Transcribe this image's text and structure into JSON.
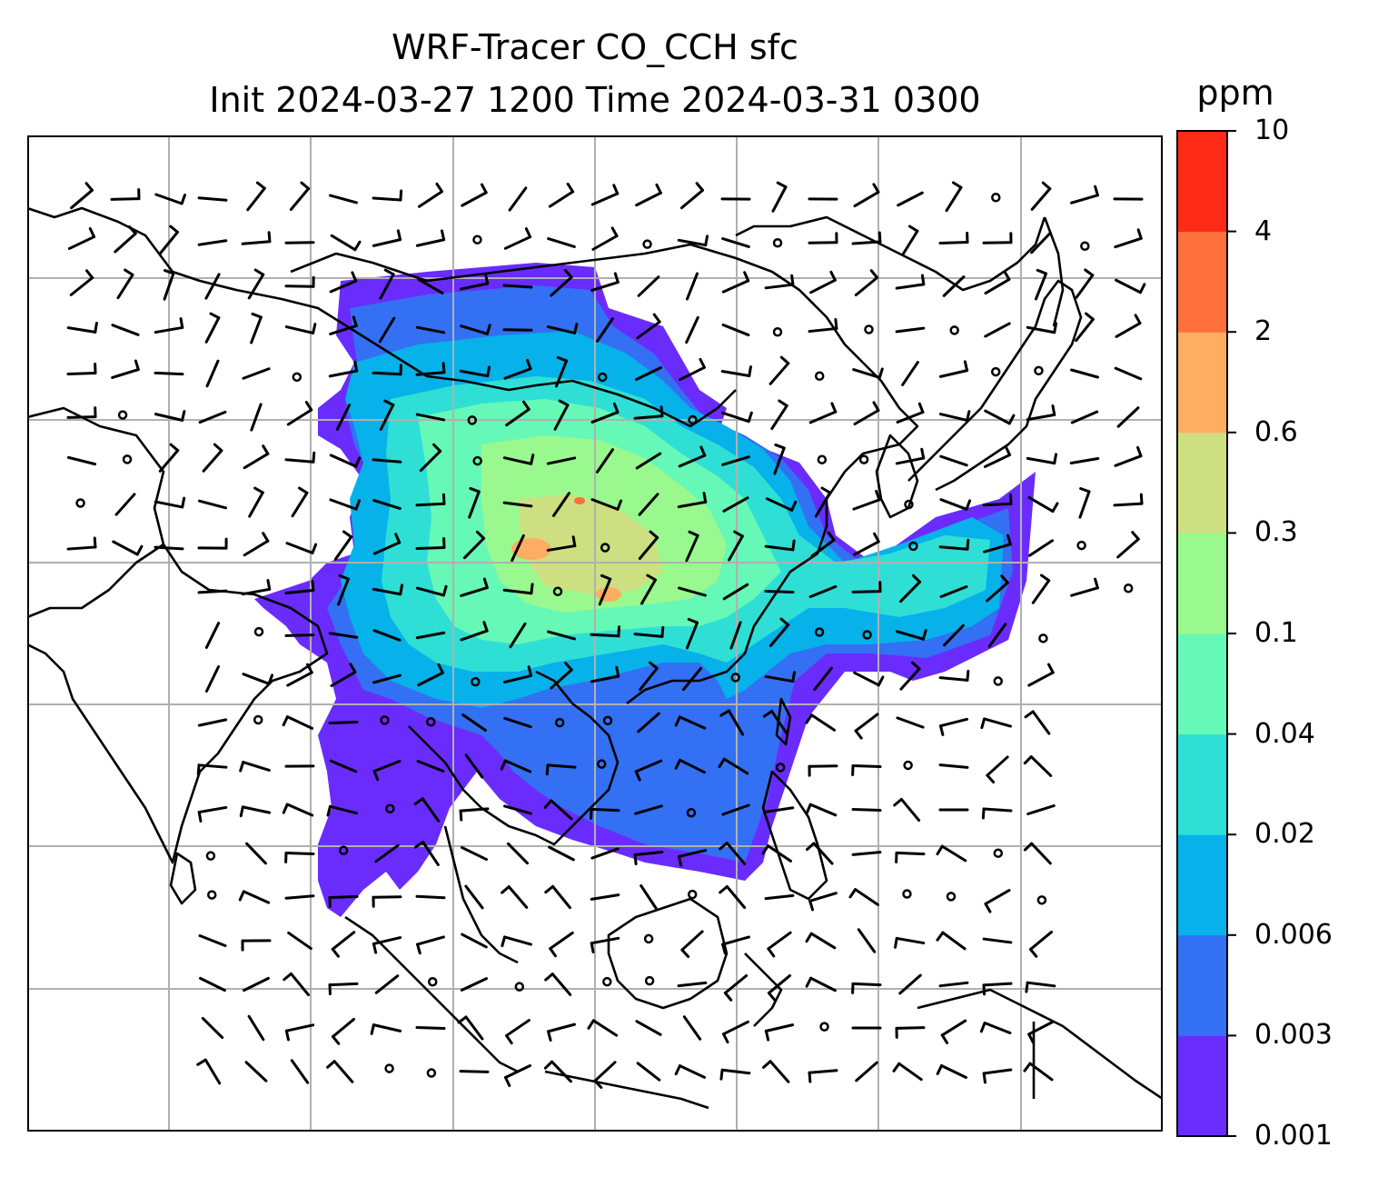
{
  "title": {
    "line1": "WRF-Tracer CO_CCH sfc",
    "line2": "Init 2024-03-27 1200 Time 2024-03-31 0300"
  },
  "colorbar": {
    "unit": "ppm",
    "levels": [
      "0.001",
      "0.003",
      "0.006",
      "0.02",
      "0.04",
      "0.1",
      "0.3",
      "0.6",
      "2",
      "4",
      "10"
    ],
    "colors": [
      "#6a2cfc",
      "#3370f3",
      "#06b2e9",
      "#2fdfd6",
      "#66f8b7",
      "#99f98f",
      "#cedf82",
      "#fead62",
      "#fe703c",
      "#fd2a17"
    ]
  },
  "map": {
    "type": "wind-barbs-over-concentration",
    "grid": "on",
    "colors": {
      "coast": "#000000",
      "grid": "#b0b0b0",
      "barb": "#000000"
    }
  }
}
